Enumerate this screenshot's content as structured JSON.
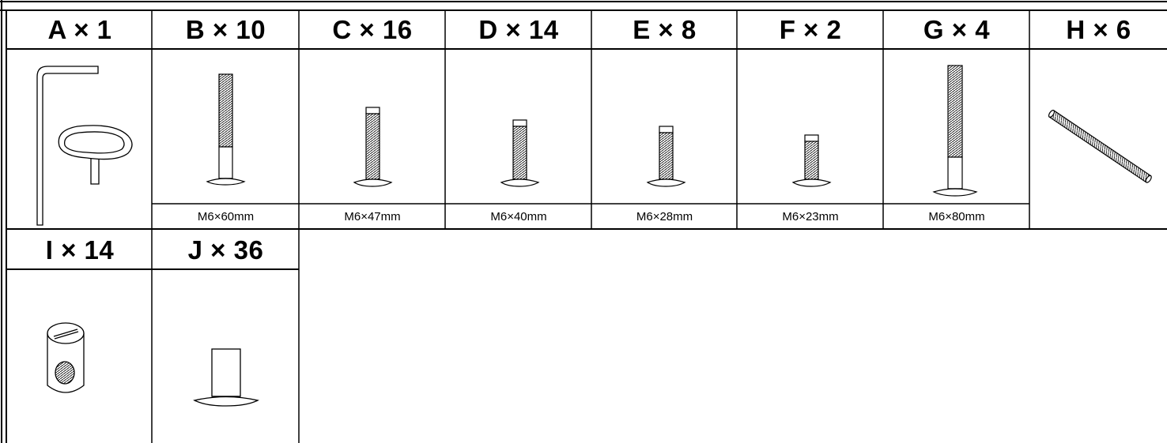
{
  "parts_row_1": [
    {
      "letter": "A",
      "label": "A × 1",
      "quantity": 1,
      "size": "",
      "icon": "allen-key-and-wrench-icon"
    },
    {
      "letter": "B",
      "label": "B × 10",
      "quantity": 10,
      "size": "M6×60mm",
      "icon": "bolt-icon"
    },
    {
      "letter": "C",
      "label": "C × 16",
      "quantity": 16,
      "size": "M6×47mm",
      "icon": "bolt-icon"
    },
    {
      "letter": "D",
      "label": "D × 14",
      "quantity": 14,
      "size": "M6×40mm",
      "icon": "bolt-icon"
    },
    {
      "letter": "E",
      "label": "E × 8",
      "quantity": 8,
      "size": "M6×28mm",
      "icon": "bolt-icon"
    },
    {
      "letter": "F",
      "label": "F × 2",
      "quantity": 2,
      "size": "M6×23mm",
      "icon": "bolt-icon"
    },
    {
      "letter": "G",
      "label": "G × 4",
      "quantity": 4,
      "size": "M6×80mm",
      "icon": "bolt-icon"
    },
    {
      "letter": "H",
      "label": "H × 6",
      "quantity": 6,
      "size": "",
      "icon": "threaded-rod-icon"
    }
  ],
  "parts_row_2": [
    {
      "letter": "I",
      "label": "I × 14",
      "quantity": 14,
      "size": "",
      "icon": "barrel-nut-icon"
    },
    {
      "letter": "J",
      "label": "J × 36",
      "quantity": 36,
      "size": "",
      "icon": "cap-nut-icon"
    }
  ]
}
